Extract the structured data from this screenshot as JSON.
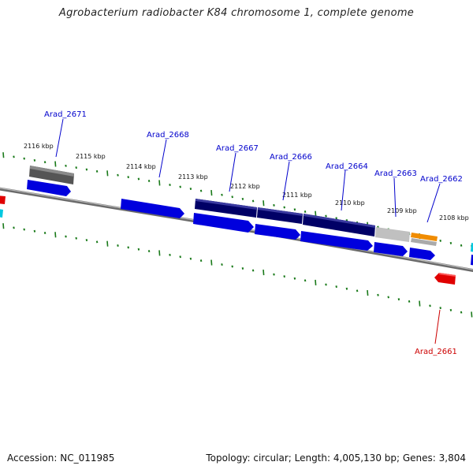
{
  "header": {
    "title": "Agrobacterium radiobacter K84 chromosome 1, complete genome"
  },
  "footer": {
    "accession": "Accession: NC_011985",
    "summary": "Topology: circular; Length: 4,005,130 bp; Genes: 3,804"
  },
  "ruler": {
    "ticks": [
      {
        "label": "2116 kbp"
      },
      {
        "label": "2115 kbp"
      },
      {
        "label": "2114 kbp"
      },
      {
        "label": "2113 kbp"
      },
      {
        "label": "2112 kbp"
      },
      {
        "label": "2111 kbp"
      },
      {
        "label": "2110 kbp"
      },
      {
        "label": "2109 kbp"
      },
      {
        "label": "2108 kbp"
      }
    ]
  },
  "gene_labels": [
    {
      "text": "Arad_2671",
      "color": "#0000cc"
    },
    {
      "text": "Arad_2668",
      "color": "#0000cc"
    },
    {
      "text": "Arad_2667",
      "color": "#0000cc"
    },
    {
      "text": "Arad_2666",
      "color": "#0000cc"
    },
    {
      "text": "Arad_2664",
      "color": "#0000cc"
    },
    {
      "text": "Arad_2663",
      "color": "#0000cc"
    },
    {
      "text": "Arad_2662",
      "color": "#0000cc"
    },
    {
      "text": "Arad_2661",
      "color": "#cc0000"
    }
  ],
  "colors": {
    "backbone": "#808080",
    "ticks": "#1a7a1a",
    "cds_forward": "#0000e0",
    "cds_reverse": "#e00000",
    "feature_dark": "#000070",
    "feature_grey": "#606060",
    "feature_light": "#c0c0c0",
    "feature_orange": "#f08c00",
    "feature_cyan": "#00c8e0"
  }
}
